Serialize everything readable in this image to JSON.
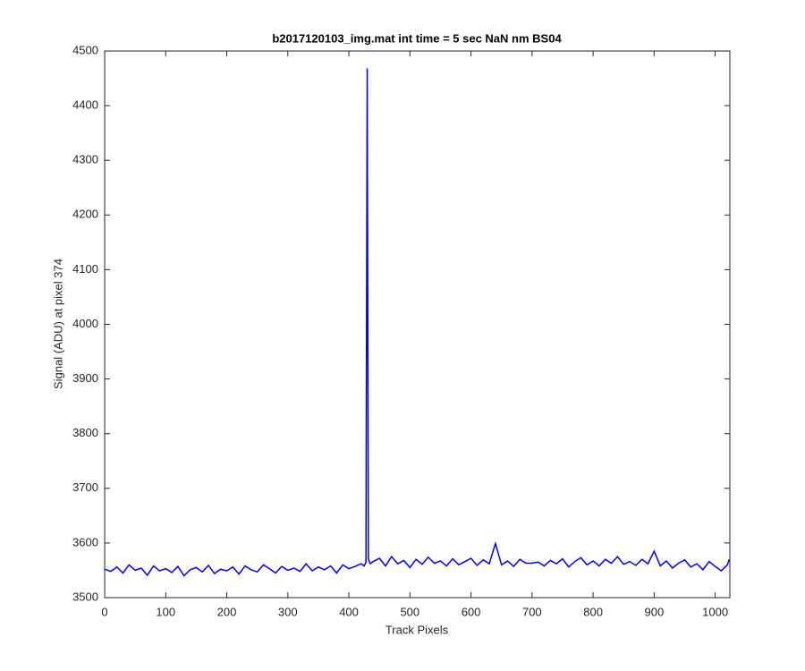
{
  "chart_data": {
    "type": "line",
    "title": "b2017120103_img.mat int time = 5 sec  NaN nm BS04",
    "x_label": "Track Pixels",
    "y_label": "Signal (ADU) at pixel 374",
    "x": [
      0,
      10,
      20,
      30,
      40,
      50,
      60,
      70,
      80,
      90,
      100,
      110,
      120,
      130,
      140,
      150,
      160,
      170,
      180,
      190,
      200,
      210,
      220,
      230,
      240,
      250,
      260,
      270,
      280,
      290,
      300,
      310,
      320,
      330,
      340,
      350,
      360,
      370,
      380,
      390,
      400,
      410,
      420,
      425,
      428,
      430,
      432,
      435,
      440,
      450,
      460,
      470,
      480,
      490,
      500,
      510,
      520,
      530,
      540,
      550,
      560,
      570,
      580,
      590,
      600,
      610,
      620,
      630,
      640,
      650,
      660,
      670,
      680,
      690,
      700,
      710,
      720,
      730,
      740,
      750,
      760,
      770,
      780,
      790,
      800,
      810,
      820,
      830,
      840,
      850,
      860,
      870,
      880,
      890,
      900,
      910,
      920,
      930,
      940,
      950,
      960,
      970,
      980,
      990,
      1000,
      1010,
      1020,
      1023
    ],
    "series": [
      {
        "name": "signal",
        "color": "#0000ff",
        "values": [
          3552,
          3548,
          3556,
          3545,
          3560,
          3550,
          3554,
          3541,
          3558,
          3549,
          3553,
          3546,
          3557,
          3540,
          3551,
          3555,
          3547,
          3559,
          3544,
          3552,
          3549,
          3556,
          3543,
          3558,
          3551,
          3547,
          3560,
          3553,
          3545,
          3557,
          3550,
          3554,
          3548,
          3562,
          3549,
          3556,
          3551,
          3558,
          3545,
          3560,
          3553,
          3557,
          3562,
          3558,
          3565,
          4468,
          3570,
          3562,
          3566,
          3572,
          3558,
          3575,
          3562,
          3568,
          3555,
          3570,
          3561,
          3574,
          3563,
          3567,
          3558,
          3571,
          3560,
          3566,
          3572,
          3559,
          3569,
          3562,
          3599,
          3560,
          3567,
          3557,
          3570,
          3563,
          3563,
          3565,
          3558,
          3568,
          3562,
          3571,
          3556,
          3566,
          3573,
          3560,
          3567,
          3558,
          3570,
          3563,
          3575,
          3561,
          3566,
          3559,
          3570,
          3562,
          3585,
          3558,
          3567,
          3554,
          3563,
          3569,
          3556,
          3562,
          3551,
          3566,
          3557,
          3549,
          3560,
          3570
        ]
      }
    ],
    "xlim": [
      0,
      1024
    ],
    "xticks": [
      0,
      100,
      200,
      300,
      400,
      500,
      600,
      700,
      800,
      900,
      1000
    ],
    "ylim": [
      3500,
      4500
    ],
    "yticks": [
      3500,
      3600,
      3700,
      3800,
      3900,
      4000,
      4100,
      4200,
      4300,
      4400,
      4500
    ]
  }
}
